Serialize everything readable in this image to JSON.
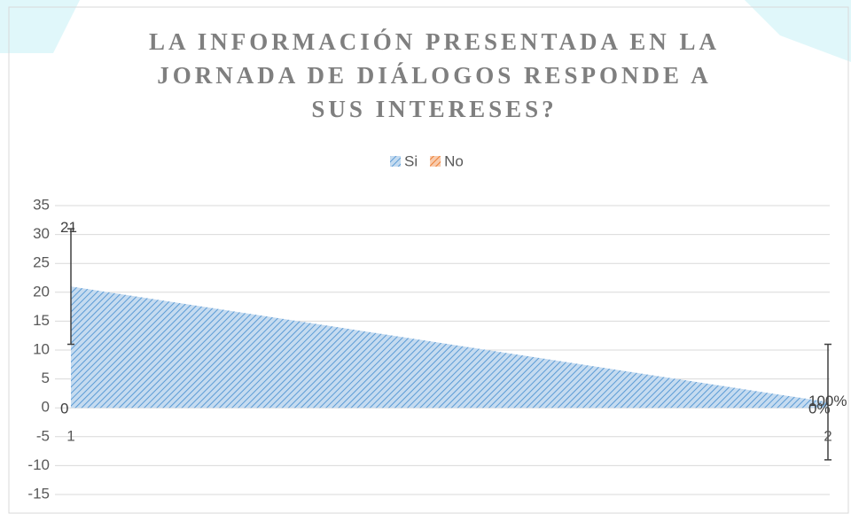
{
  "chart_data": {
    "type": "area",
    "title_lines": [
      "LA INFORMACIÓN PRESENTADA EN LA",
      "JORNADA DE DIÁLOGOS RESPONDE A",
      "SUS INTERESES?"
    ],
    "categories": [
      "1",
      "2"
    ],
    "series": [
      {
        "name": "Si",
        "color": "#5b9bd5",
        "values": [
          21,
          1
        ],
        "value_labels": [
          "21",
          "100%"
        ],
        "errors": [
          10,
          10
        ]
      },
      {
        "name": "No",
        "color": "#ed7d31",
        "values": [
          0,
          0
        ],
        "value_labels": [
          "0",
          "0%"
        ]
      }
    ],
    "ylim": [
      -15,
      35
    ],
    "yticks": [
      -15,
      -10,
      -5,
      0,
      5,
      10,
      15,
      20,
      25,
      30,
      35
    ],
    "grid": true,
    "legend": "top"
  }
}
